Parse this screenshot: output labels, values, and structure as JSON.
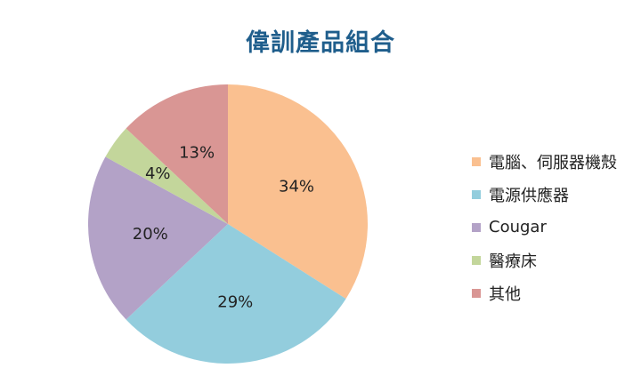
{
  "chart_data": {
    "type": "pie",
    "title": "偉訓產品組合",
    "categories": [
      "電腦、伺服器機殼",
      "電源供應器",
      "Cougar",
      "醫療床",
      "其他"
    ],
    "values": [
      34,
      29,
      20,
      4,
      13
    ],
    "data_labels": [
      "34%",
      "29%",
      "20%",
      "4%",
      "13%"
    ],
    "colors": [
      "#fac090",
      "#93cddd",
      "#b3a2c7",
      "#c3d69b",
      "#d99694"
    ],
    "legend_position": "right",
    "start_angle": "12 o'clock",
    "direction": "clockwise"
  }
}
